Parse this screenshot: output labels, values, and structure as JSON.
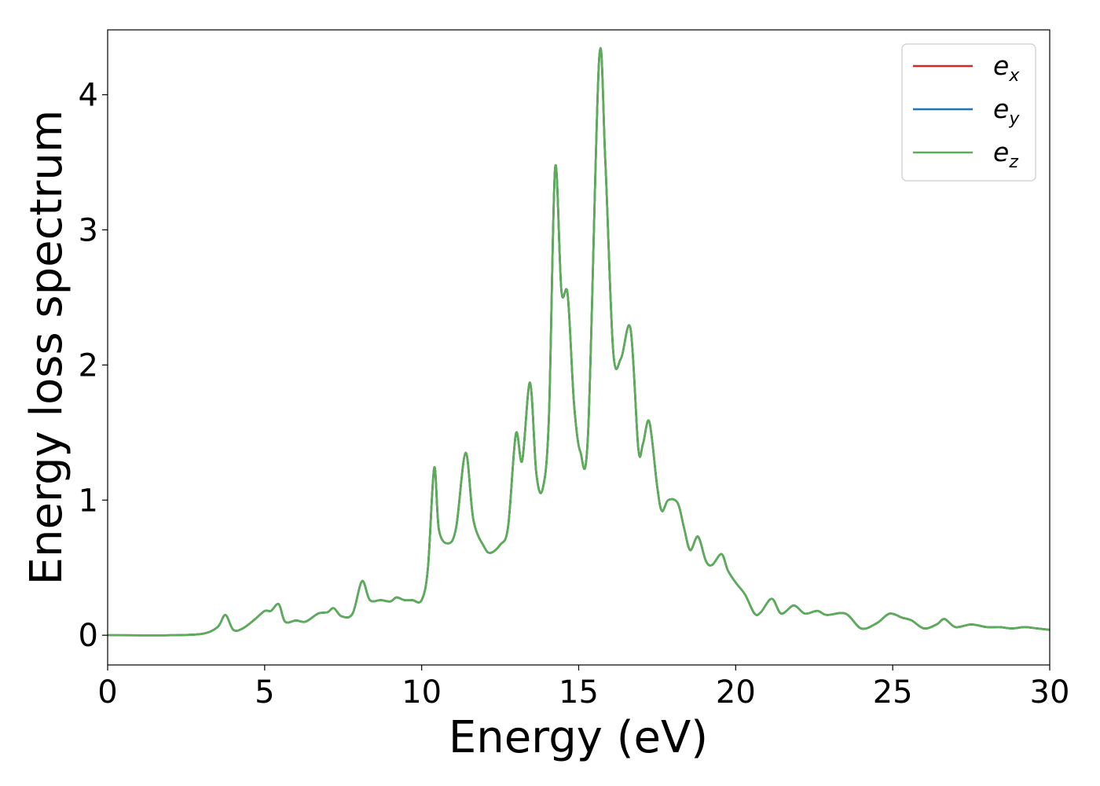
{
  "chart_data": {
    "type": "line",
    "title": "",
    "xlabel": "Energy (eV)",
    "ylabel": "Energy loss spectrum",
    "xlim": [
      0,
      30
    ],
    "ylim": [
      -0.22,
      4.48
    ],
    "xticks": [
      0,
      5,
      10,
      15,
      20,
      25,
      30
    ],
    "yticks": [
      0,
      1,
      2,
      3,
      4
    ],
    "grid": false,
    "legend_position": "top-right",
    "series": [
      {
        "name": "e_x",
        "label_base": "e",
        "label_sub": "x",
        "color": "#d62728",
        "x": [
          0,
          2,
          3,
          3.5,
          3.75,
          4.0,
          4.3,
          4.7,
          5.0,
          5.2,
          5.45,
          5.65,
          6.0,
          6.3,
          6.7,
          7.0,
          7.2,
          7.45,
          7.8,
          8.1,
          8.35,
          8.7,
          9.0,
          9.2,
          9.45,
          9.7,
          10.0,
          10.2,
          10.4,
          10.55,
          10.85,
          11.1,
          11.4,
          11.65,
          12.0,
          12.2,
          12.5,
          12.75,
          13.0,
          13.2,
          13.45,
          13.65,
          13.85,
          14.05,
          14.25,
          14.45,
          14.65,
          14.85,
          15.05,
          15.3,
          15.65,
          15.85,
          16.1,
          16.35,
          16.65,
          16.9,
          17.05,
          17.25,
          17.5,
          17.65,
          17.85,
          18.15,
          18.35,
          18.55,
          18.8,
          19.05,
          19.25,
          19.55,
          19.75,
          20.0,
          20.3,
          20.6,
          20.8,
          21.15,
          21.45,
          21.85,
          22.2,
          22.6,
          22.9,
          23.5,
          24.0,
          24.5,
          24.9,
          25.3,
          25.6,
          26.0,
          26.4,
          26.65,
          27.0,
          27.5,
          28.0,
          28.4,
          28.8,
          29.2,
          29.6,
          30
        ],
        "values": [
          0.0,
          0.0,
          0.01,
          0.06,
          0.15,
          0.04,
          0.05,
          0.12,
          0.18,
          0.18,
          0.23,
          0.1,
          0.11,
          0.1,
          0.16,
          0.17,
          0.2,
          0.14,
          0.16,
          0.4,
          0.26,
          0.26,
          0.25,
          0.28,
          0.26,
          0.26,
          0.26,
          0.5,
          1.24,
          0.78,
          0.68,
          0.8,
          1.35,
          0.85,
          0.65,
          0.61,
          0.67,
          0.8,
          1.49,
          1.29,
          1.87,
          1.2,
          1.08,
          1.6,
          3.46,
          2.55,
          2.52,
          1.72,
          1.36,
          1.5,
          4.26,
          3.5,
          2.1,
          2.05,
          2.27,
          1.38,
          1.42,
          1.58,
          1.1,
          0.92,
          1.0,
          0.98,
          0.8,
          0.63,
          0.73,
          0.55,
          0.52,
          0.6,
          0.48,
          0.39,
          0.3,
          0.16,
          0.17,
          0.27,
          0.16,
          0.22,
          0.16,
          0.18,
          0.15,
          0.16,
          0.05,
          0.09,
          0.16,
          0.13,
          0.11,
          0.05,
          0.08,
          0.12,
          0.06,
          0.08,
          0.06,
          0.06,
          0.05,
          0.06,
          0.05,
          0.04
        ]
      },
      {
        "name": "e_y",
        "label_base": "e",
        "label_sub": "y",
        "color": "#1f77b4",
        "x": [
          0,
          2,
          3,
          3.5,
          3.75,
          4.0,
          4.3,
          4.7,
          5.0,
          5.2,
          5.45,
          5.65,
          6.0,
          6.3,
          6.7,
          7.0,
          7.2,
          7.45,
          7.8,
          8.1,
          8.35,
          8.7,
          9.0,
          9.2,
          9.45,
          9.7,
          10.0,
          10.2,
          10.4,
          10.55,
          10.85,
          11.1,
          11.4,
          11.65,
          12.0,
          12.2,
          12.5,
          12.75,
          13.0,
          13.2,
          13.45,
          13.65,
          13.85,
          14.05,
          14.25,
          14.45,
          14.65,
          14.85,
          15.05,
          15.3,
          15.65,
          15.85,
          16.1,
          16.35,
          16.65,
          16.9,
          17.05,
          17.25,
          17.5,
          17.65,
          17.85,
          18.15,
          18.35,
          18.55,
          18.8,
          19.05,
          19.25,
          19.55,
          19.75,
          20.0,
          20.3,
          20.6,
          20.8,
          21.15,
          21.45,
          21.85,
          22.2,
          22.6,
          22.9,
          23.5,
          24.0,
          24.5,
          24.9,
          25.3,
          25.6,
          26.0,
          26.4,
          26.65,
          27.0,
          27.5,
          28.0,
          28.4,
          28.8,
          29.2,
          29.6,
          30
        ],
        "values": [
          0.0,
          0.0,
          0.01,
          0.06,
          0.15,
          0.04,
          0.05,
          0.12,
          0.18,
          0.18,
          0.23,
          0.1,
          0.11,
          0.1,
          0.16,
          0.17,
          0.2,
          0.14,
          0.16,
          0.4,
          0.26,
          0.26,
          0.25,
          0.28,
          0.26,
          0.26,
          0.26,
          0.5,
          1.24,
          0.78,
          0.68,
          0.8,
          1.35,
          0.85,
          0.65,
          0.61,
          0.67,
          0.8,
          1.49,
          1.29,
          1.87,
          1.2,
          1.08,
          1.6,
          3.46,
          2.55,
          2.52,
          1.72,
          1.36,
          1.5,
          4.26,
          3.5,
          2.1,
          2.05,
          2.27,
          1.38,
          1.42,
          1.58,
          1.1,
          0.92,
          1.0,
          0.98,
          0.8,
          0.63,
          0.73,
          0.55,
          0.52,
          0.6,
          0.48,
          0.39,
          0.3,
          0.16,
          0.17,
          0.27,
          0.16,
          0.22,
          0.16,
          0.18,
          0.15,
          0.16,
          0.05,
          0.09,
          0.16,
          0.13,
          0.11,
          0.05,
          0.08,
          0.12,
          0.06,
          0.08,
          0.06,
          0.06,
          0.05,
          0.06,
          0.05,
          0.04
        ]
      },
      {
        "name": "e_z",
        "label_base": "e",
        "label_sub": "z",
        "color": "#5aae55",
        "x": [
          0,
          2,
          3,
          3.5,
          3.75,
          4.0,
          4.3,
          4.7,
          5.0,
          5.2,
          5.45,
          5.65,
          6.0,
          6.3,
          6.7,
          7.0,
          7.2,
          7.45,
          7.8,
          8.1,
          8.35,
          8.7,
          9.0,
          9.2,
          9.45,
          9.7,
          10.0,
          10.2,
          10.4,
          10.55,
          10.85,
          11.1,
          11.4,
          11.65,
          12.0,
          12.2,
          12.5,
          12.75,
          13.0,
          13.2,
          13.45,
          13.65,
          13.85,
          14.05,
          14.25,
          14.45,
          14.65,
          14.85,
          15.05,
          15.3,
          15.65,
          15.85,
          16.1,
          16.35,
          16.65,
          16.9,
          17.05,
          17.25,
          17.5,
          17.65,
          17.85,
          18.15,
          18.35,
          18.55,
          18.8,
          19.05,
          19.25,
          19.55,
          19.75,
          20.0,
          20.3,
          20.6,
          20.8,
          21.15,
          21.45,
          21.85,
          22.2,
          22.6,
          22.9,
          23.5,
          24.0,
          24.5,
          24.9,
          25.3,
          25.6,
          26.0,
          26.4,
          26.65,
          27.0,
          27.5,
          28.0,
          28.4,
          28.8,
          29.2,
          29.6,
          30
        ],
        "values": [
          0.0,
          0.0,
          0.01,
          0.06,
          0.15,
          0.04,
          0.05,
          0.12,
          0.18,
          0.18,
          0.23,
          0.1,
          0.11,
          0.1,
          0.16,
          0.17,
          0.2,
          0.14,
          0.16,
          0.4,
          0.26,
          0.26,
          0.25,
          0.28,
          0.26,
          0.26,
          0.26,
          0.5,
          1.24,
          0.78,
          0.68,
          0.8,
          1.35,
          0.85,
          0.65,
          0.61,
          0.67,
          0.8,
          1.49,
          1.29,
          1.87,
          1.2,
          1.08,
          1.6,
          3.46,
          2.55,
          2.52,
          1.72,
          1.36,
          1.5,
          4.26,
          3.5,
          2.1,
          2.05,
          2.27,
          1.38,
          1.42,
          1.58,
          1.1,
          0.92,
          1.0,
          0.98,
          0.8,
          0.63,
          0.73,
          0.55,
          0.52,
          0.6,
          0.48,
          0.39,
          0.3,
          0.16,
          0.17,
          0.27,
          0.16,
          0.22,
          0.16,
          0.18,
          0.15,
          0.16,
          0.05,
          0.09,
          0.16,
          0.13,
          0.11,
          0.05,
          0.08,
          0.12,
          0.06,
          0.08,
          0.06,
          0.06,
          0.05,
          0.06,
          0.05,
          0.04
        ]
      }
    ]
  }
}
